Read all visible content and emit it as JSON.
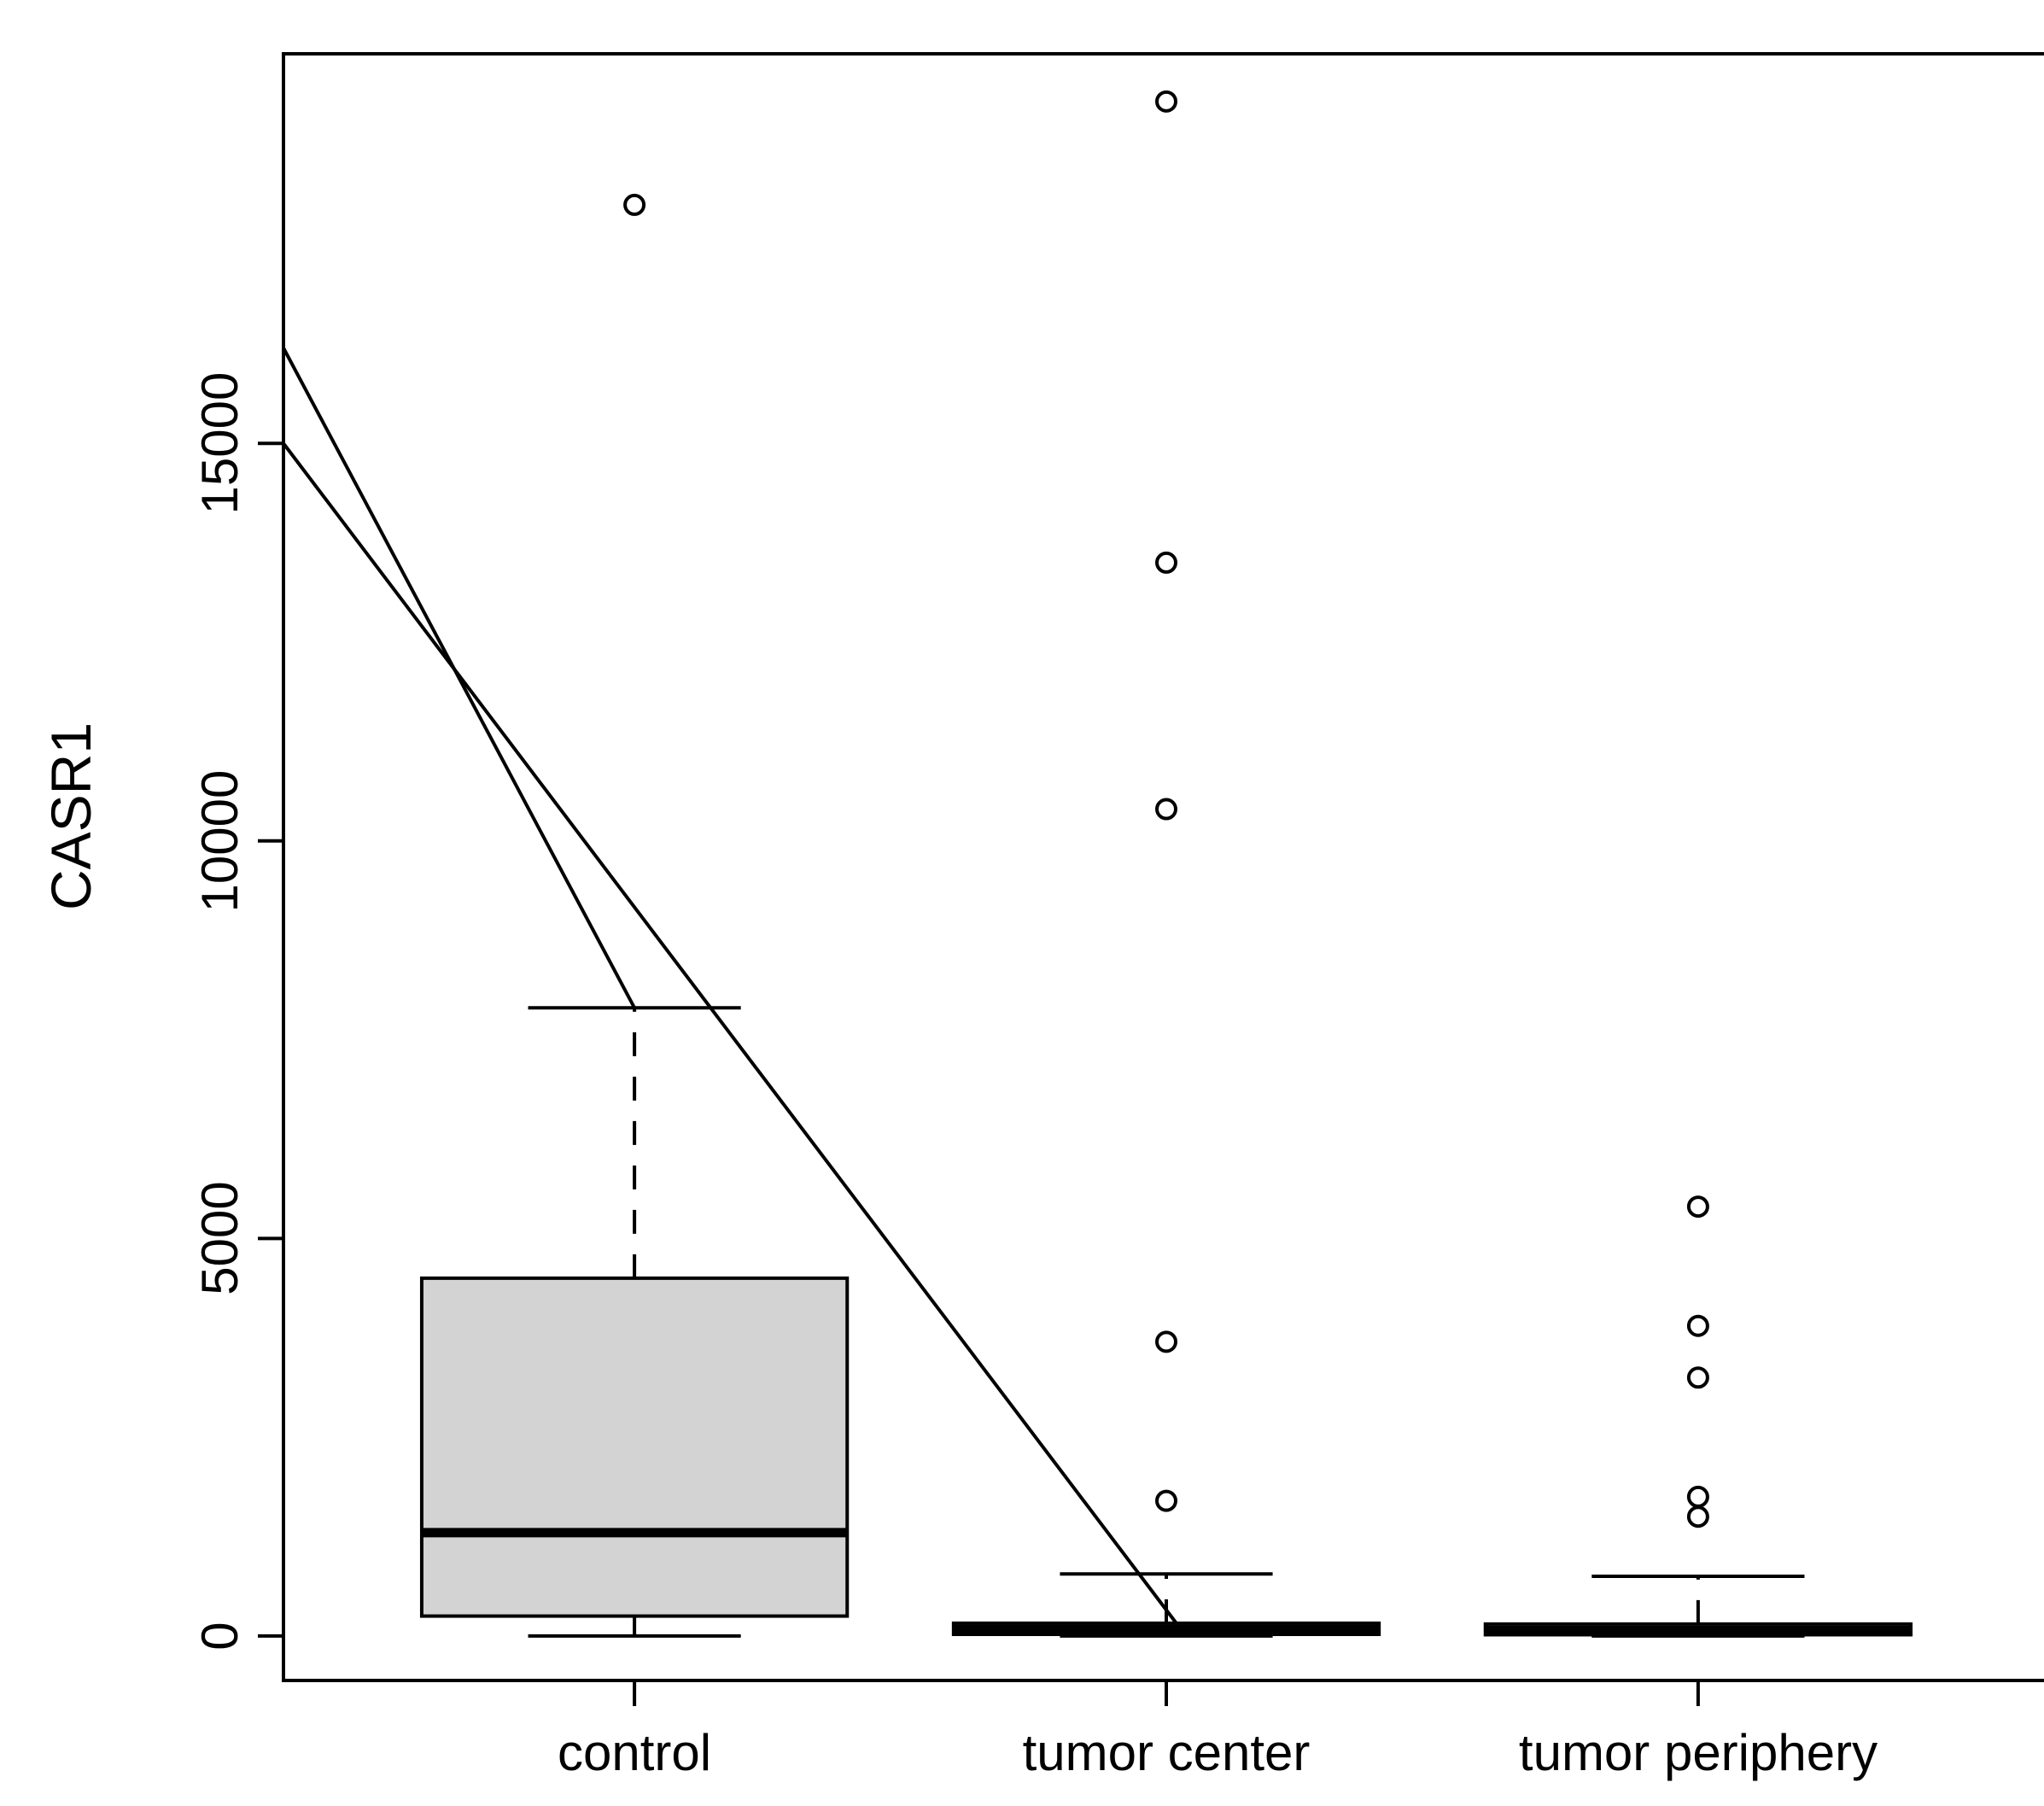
{
  "chart_data": {
    "type": "box",
    "title": "",
    "ylabel": "CASR1",
    "xlabel": "",
    "categories": [
      "control",
      "tumor center",
      "tumor periphery"
    ],
    "yticks": [
      0,
      5000,
      10000,
      15000
    ],
    "ylim": [
      -560,
      19900
    ],
    "grid": false,
    "legend": "none",
    "box_fill": "#d3d3d3",
    "line_color": "#000000",
    "background": "#ffffff",
    "box_width": 0.8,
    "staple_width": 0.4,
    "groups": [
      {
        "label": "control",
        "whisker_low": 0,
        "q1": 250,
        "median": 1300,
        "q3": 4500,
        "whisker_high": 7900,
        "outliers": [
          18000
        ]
      },
      {
        "label": "tumor center",
        "whisker_low": 0,
        "q1": 20,
        "median": 80,
        "q3": 160,
        "whisker_high": 780,
        "outliers": [
          19300,
          13500,
          10400,
          3700,
          1700
        ]
      },
      {
        "label": "tumor periphery",
        "whisker_low": 0,
        "q1": 15,
        "median": 70,
        "q3": 150,
        "whisker_high": 750,
        "outliers": [
          5400,
          3900,
          3250,
          1750,
          1500
        ]
      }
    ],
    "annotation_lines": [
      {
        "x1": 0.34,
        "y1": 16200,
        "x2": 1.0,
        "y2": 7900
      },
      {
        "x1": 0.34,
        "y1": 15000,
        "x2": 2.02,
        "y2": 150
      }
    ]
  }
}
